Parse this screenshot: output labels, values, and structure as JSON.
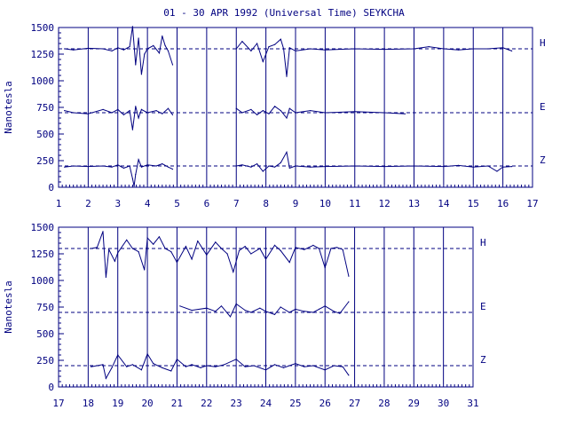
{
  "title": "01 - 30 APR 1992 (Universal Time) SEYKCHA",
  "colors": {
    "ink": "#000080",
    "bg": "#ffffff"
  },
  "chart_data": [
    {
      "type": "line",
      "ylabel": "Nanotesla",
      "xlim": [
        1,
        17
      ],
      "ylim": [
        0,
        1500
      ],
      "x_ticks": [
        1,
        2,
        3,
        4,
        5,
        6,
        7,
        8,
        9,
        10,
        11,
        12,
        13,
        14,
        15,
        16,
        17
      ],
      "y_ticks": [
        0,
        250,
        500,
        750,
        1000,
        1250,
        1500
      ],
      "baselines": [
        1300,
        700,
        200
      ],
      "series": [
        {
          "name": "H",
          "baseline": 1300,
          "segments": [
            {
              "x": [
                1.2,
                1.5,
                2.0,
                2.5,
                2.8,
                3.0,
                3.2,
                3.4,
                3.5,
                3.6,
                3.7,
                3.8,
                3.9,
                4.0,
                4.2,
                4.4,
                4.5,
                4.6,
                4.7,
                4.85
              ],
              "y": [
                1300,
                1290,
                1305,
                1300,
                1280,
                1310,
                1290,
                1320,
                1510,
                1150,
                1400,
                1060,
                1250,
                1300,
                1330,
                1260,
                1420,
                1330,
                1280,
                1150
              ]
            },
            {
              "x": [
                7.0,
                7.2,
                7.5,
                7.7,
                7.9,
                8.1,
                8.3,
                8.5,
                8.6,
                8.7,
                8.8,
                9.0,
                9.5,
                10.0,
                11.0,
                12.0,
                13.0,
                13.5,
                14.0,
                14.5,
                15.0,
                15.5,
                16.0,
                16.3
              ],
              "y": [
                1300,
                1370,
                1280,
                1350,
                1180,
                1320,
                1340,
                1390,
                1300,
                1040,
                1310,
                1280,
                1300,
                1290,
                1300,
                1295,
                1300,
                1320,
                1300,
                1290,
                1300,
                1300,
                1310,
                1280
              ]
            }
          ]
        },
        {
          "name": "E",
          "baseline": 700,
          "segments": [
            {
              "x": [
                1.2,
                1.5,
                2.0,
                2.5,
                2.8,
                3.0,
                3.2,
                3.4,
                3.5,
                3.6,
                3.7,
                3.8,
                4.0,
                4.3,
                4.5,
                4.7,
                4.85
              ],
              "y": [
                720,
                700,
                690,
                730,
                700,
                730,
                680,
                720,
                540,
                760,
                650,
                730,
                700,
                720,
                690,
                740,
                680
              ]
            },
            {
              "x": [
                7.0,
                7.2,
                7.5,
                7.7,
                7.9,
                8.1,
                8.3,
                8.5,
                8.7,
                8.8,
                9.0,
                9.5,
                10.0,
                11.0,
                12.0,
                12.7
              ],
              "y": [
                740,
                700,
                730,
                680,
                720,
                690,
                760,
                720,
                650,
                740,
                700,
                720,
                700,
                710,
                700,
                690
              ]
            }
          ]
        },
        {
          "name": "Z",
          "baseline": 200,
          "segments": [
            {
              "x": [
                1.2,
                1.5,
                2.0,
                2.5,
                2.8,
                3.0,
                3.2,
                3.4,
                3.5,
                3.55,
                3.6,
                3.7,
                3.8,
                4.0,
                4.3,
                4.5,
                4.7,
                4.85
              ],
              "y": [
                190,
                200,
                195,
                200,
                190,
                210,
                180,
                200,
                80,
                10,
                120,
                260,
                190,
                210,
                200,
                220,
                190,
                170
              ]
            },
            {
              "x": [
                7.0,
                7.2,
                7.5,
                7.7,
                7.9,
                8.1,
                8.3,
                8.5,
                8.7,
                8.8,
                9.0,
                9.5,
                10.0,
                11.0,
                12.0,
                13.0,
                14.0,
                14.5,
                15.0,
                15.5,
                15.8,
                16.0,
                16.3
              ],
              "y": [
                200,
                210,
                190,
                220,
                150,
                200,
                190,
                230,
                330,
                180,
                200,
                190,
                195,
                200,
                195,
                200,
                195,
                205,
                190,
                200,
                150,
                190,
                195
              ]
            }
          ]
        }
      ]
    },
    {
      "type": "line",
      "ylabel": "Nanotesla",
      "xlim": [
        17,
        31
      ],
      "ylim": [
        0,
        1500
      ],
      "x_ticks": [
        17,
        18,
        19,
        20,
        21,
        22,
        23,
        24,
        25,
        26,
        27,
        28,
        29,
        30,
        31
      ],
      "y_ticks": [
        0,
        250,
        500,
        750,
        1000,
        1250,
        1500
      ],
      "baselines": [
        1300,
        700,
        200
      ],
      "series": [
        {
          "name": "H",
          "baseline": 1300,
          "segments": [
            {
              "x": [
                18.1,
                18.3,
                18.5,
                18.6,
                18.7,
                18.9,
                19.0,
                19.3,
                19.5,
                19.7,
                19.9,
                20.0,
                20.2,
                20.4,
                20.6,
                20.8,
                21.0,
                21.3,
                21.5,
                21.7,
                22.0,
                22.3,
                22.5,
                22.7,
                22.9,
                23.1,
                23.3,
                23.5,
                23.8,
                24.0,
                24.3,
                24.5,
                24.8,
                25.0,
                25.3,
                25.6,
                25.8,
                26.0,
                26.2,
                26.4,
                26.6,
                26.8
              ],
              "y": [
                1300,
                1310,
                1460,
                1030,
                1290,
                1180,
                1260,
                1380,
                1300,
                1270,
                1100,
                1400,
                1340,
                1410,
                1300,
                1270,
                1170,
                1320,
                1200,
                1370,
                1240,
                1360,
                1300,
                1250,
                1080,
                1280,
                1320,
                1250,
                1300,
                1200,
                1330,
                1280,
                1170,
                1310,
                1290,
                1330,
                1300,
                1120,
                1300,
                1310,
                1290,
                1040
              ]
            }
          ]
        },
        {
          "name": "E",
          "baseline": 700,
          "segments": [
            {
              "x": [
                21.1,
                21.5,
                22.0,
                22.3,
                22.5,
                22.8,
                23.0,
                23.3,
                23.5,
                23.8,
                24.0,
                24.3,
                24.5,
                24.8,
                25.0,
                25.3,
                25.6,
                25.8,
                26.0,
                26.3,
                26.5,
                26.8
              ],
              "y": [
                760,
                720,
                740,
                710,
                760,
                660,
                780,
                720,
                700,
                740,
                710,
                680,
                750,
                700,
                730,
                710,
                700,
                730,
                760,
                710,
                690,
                800
              ]
            }
          ]
        },
        {
          "name": "Z",
          "baseline": 200,
          "segments": [
            {
              "x": [
                18.1,
                18.3,
                18.5,
                18.6,
                18.8,
                19.0,
                19.3,
                19.5,
                19.8,
                20.0,
                20.2,
                20.5,
                20.8,
                21.0,
                21.3,
                21.5,
                21.8,
                22.0,
                22.3,
                22.6,
                23.0,
                23.3,
                23.6,
                24.0,
                24.3,
                24.6,
                25.0,
                25.3,
                25.6,
                26.0,
                26.3,
                26.6,
                26.8
              ],
              "y": [
                190,
                200,
                210,
                80,
                180,
                300,
                190,
                210,
                160,
                310,
                220,
                180,
                150,
                260,
                190,
                210,
                180,
                200,
                190,
                210,
                260,
                190,
                200,
                160,
                210,
                180,
                220,
                190,
                200,
                160,
                200,
                190,
                110
              ]
            }
          ]
        }
      ]
    }
  ]
}
